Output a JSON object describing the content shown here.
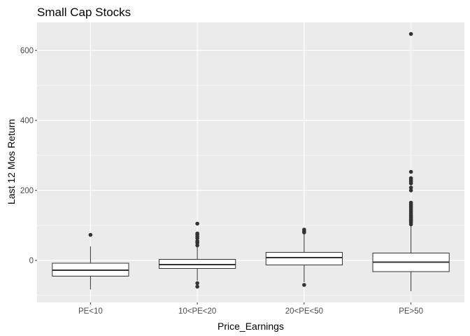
{
  "chart_data": {
    "type": "boxplot",
    "title": "Small Cap Stocks",
    "xlabel": "Price_Earnings",
    "ylabel": "Last 12 Mos Return",
    "categories": [
      "PE<10",
      "10<PE<20",
      "20<PE<50",
      "PE>50"
    ],
    "ylim": [
      -120,
      680
    ],
    "yticks": [
      0,
      200,
      400,
      600
    ],
    "grid": true,
    "colors": {
      "panel": "#ebebeb",
      "grid_major": "#ffffff",
      "box_fill": "#ffffff",
      "box_line": "#333333",
      "outlier": "#333333"
    },
    "boxes": [
      {
        "category": "PE<10",
        "whisker_low": -83,
        "q1": -45,
        "median": -28,
        "q3": -8,
        "whisker_high": 40,
        "outliers": [
          73
        ]
      },
      {
        "category": "10<PE<20",
        "whisker_low": -58,
        "q1": -23,
        "median": -12,
        "q3": 3,
        "whisker_high": 40,
        "outliers": [
          -65,
          -75,
          43,
          50,
          55,
          63,
          68,
          73,
          77,
          105
        ]
      },
      {
        "category": "20<PE<50",
        "whisker_low": -62,
        "q1": -13,
        "median": 8,
        "q3": 23,
        "whisker_high": 75,
        "outliers": [
          -70,
          80,
          83,
          88
        ]
      },
      {
        "category": "PE>50",
        "whisker_low": -88,
        "q1": -32,
        "median": -5,
        "q3": 21,
        "whisker_high": 100,
        "outliers": [
          103,
          108,
          112,
          115,
          118,
          122,
          126,
          130,
          135,
          140,
          145,
          150,
          155,
          160,
          165,
          200,
          208,
          220,
          225,
          230,
          235,
          253,
          647
        ]
      }
    ]
  }
}
